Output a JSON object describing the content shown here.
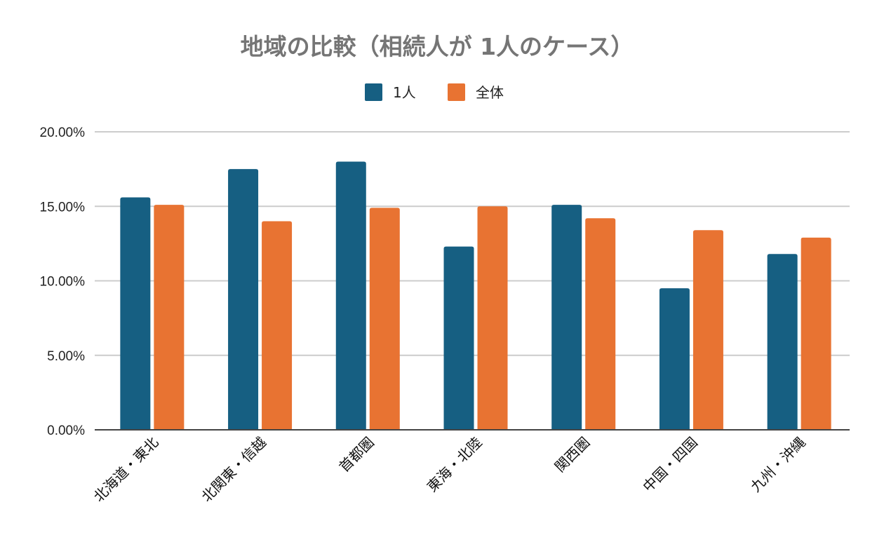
{
  "chart_data": {
    "type": "bar",
    "title": "地域の比較（相続人が 1人のケース）",
    "xlabel": "",
    "ylabel": "",
    "categories": [
      "北海道・東北",
      "北関東・信越",
      "首都圏",
      "東海・北陸",
      "関西圏",
      "中国・四国",
      "九州・沖縄"
    ],
    "series": [
      {
        "name": "1人",
        "color": "#165f82",
        "values": [
          15.6,
          17.5,
          18.0,
          12.3,
          15.1,
          9.5,
          11.8
        ]
      },
      {
        "name": "全体",
        "color": "#e87332",
        "values": [
          15.1,
          14.0,
          14.9,
          15.0,
          14.2,
          13.4,
          12.9
        ]
      }
    ],
    "ylim": [
      0,
      20
    ],
    "yticks": [
      0,
      5,
      10,
      15,
      20
    ],
    "ytick_labels": [
      "0.00%",
      "5.00%",
      "10.00%",
      "15.00%",
      "20.00%"
    ],
    "value_format": "percent",
    "grid": true,
    "legend_position": "top-center"
  }
}
